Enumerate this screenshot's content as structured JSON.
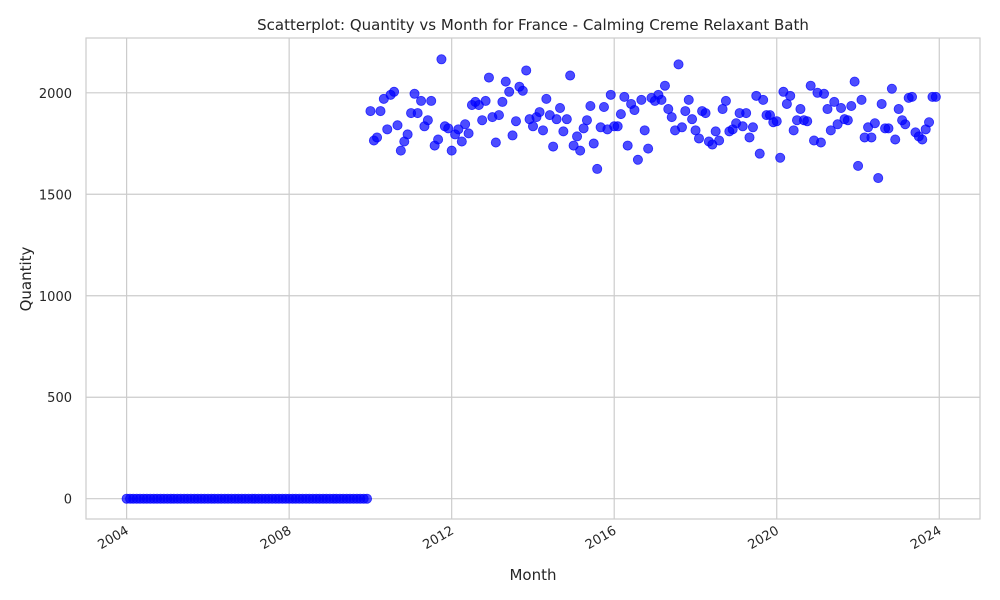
{
  "chart_data": {
    "type": "scatter",
    "title": "Scatterplot: Quantity vs Month for France - Calming Creme Relaxant Bath",
    "xlabel": "Month",
    "ylabel": "Quantity",
    "xlim": [
      "2003-01-01",
      "2025-01-01"
    ],
    "ylim": [
      -100,
      2270
    ],
    "x_ticks": [
      {
        "value": "2004-01-01",
        "label": "2004"
      },
      {
        "value": "2008-01-01",
        "label": "2008"
      },
      {
        "value": "2012-01-01",
        "label": "2012"
      },
      {
        "value": "2016-01-01",
        "label": "2016"
      },
      {
        "value": "2020-01-01",
        "label": "2020"
      },
      {
        "value": "2024-01-01",
        "label": "2024"
      }
    ],
    "y_ticks": [
      {
        "value": 0,
        "label": "0"
      },
      {
        "value": 500,
        "label": "500"
      },
      {
        "value": 1000,
        "label": "1000"
      },
      {
        "value": 1500,
        "label": "1500"
      },
      {
        "value": 2000,
        "label": "2000"
      }
    ],
    "grid": true,
    "marker_color": "#0000ff",
    "series": [
      {
        "x": [
          "2004-01",
          "2004-02",
          "2004-03",
          "2004-04",
          "2004-05",
          "2004-06",
          "2004-07",
          "2004-08",
          "2004-09",
          "2004-10",
          "2004-11",
          "2004-12",
          "2005-01",
          "2005-02",
          "2005-03",
          "2005-04",
          "2005-05",
          "2005-06",
          "2005-07",
          "2005-08",
          "2005-09",
          "2005-10",
          "2005-11",
          "2005-12",
          "2006-01",
          "2006-02",
          "2006-03",
          "2006-04",
          "2006-05",
          "2006-06",
          "2006-07",
          "2006-08",
          "2006-09",
          "2006-10",
          "2006-11",
          "2006-12",
          "2007-01",
          "2007-02",
          "2007-03",
          "2007-04",
          "2007-05",
          "2007-06",
          "2007-07",
          "2007-08",
          "2007-09",
          "2007-10",
          "2007-11",
          "2007-12",
          "2008-01",
          "2008-02",
          "2008-03",
          "2008-04",
          "2008-05",
          "2008-06",
          "2008-07",
          "2008-08",
          "2008-09",
          "2008-10",
          "2008-11",
          "2008-12",
          "2009-01",
          "2009-02",
          "2009-03",
          "2009-04",
          "2009-05",
          "2009-06",
          "2009-07",
          "2009-08",
          "2009-09",
          "2009-10",
          "2009-11",
          "2009-12",
          "2010-01",
          "2010-02",
          "2010-03",
          "2010-04",
          "2010-05",
          "2010-06",
          "2010-07",
          "2010-08",
          "2010-09",
          "2010-10",
          "2010-11",
          "2010-12",
          "2011-01",
          "2011-02",
          "2011-03",
          "2011-04",
          "2011-05",
          "2011-06",
          "2011-07",
          "2011-08",
          "2011-09",
          "2011-10",
          "2011-11",
          "2011-12",
          "2012-01",
          "2012-02",
          "2012-03",
          "2012-04",
          "2012-05",
          "2012-06",
          "2012-07",
          "2012-08",
          "2012-09",
          "2012-10",
          "2012-11",
          "2012-12",
          "2013-01",
          "2013-02",
          "2013-03",
          "2013-04",
          "2013-05",
          "2013-06",
          "2013-07",
          "2013-08",
          "2013-09",
          "2013-10",
          "2013-11",
          "2013-12",
          "2014-01",
          "2014-02",
          "2014-03",
          "2014-04",
          "2014-05",
          "2014-06",
          "2014-07",
          "2014-08",
          "2014-09",
          "2014-10",
          "2014-11",
          "2014-12",
          "2015-01",
          "2015-02",
          "2015-03",
          "2015-04",
          "2015-05",
          "2015-06",
          "2015-07",
          "2015-08",
          "2015-09",
          "2015-10",
          "2015-11",
          "2015-12",
          "2016-01",
          "2016-02",
          "2016-03",
          "2016-04",
          "2016-05",
          "2016-06",
          "2016-07",
          "2016-08",
          "2016-09",
          "2016-10",
          "2016-11",
          "2016-12",
          "2017-01",
          "2017-02",
          "2017-03",
          "2017-04",
          "2017-05",
          "2017-06",
          "2017-07",
          "2017-08",
          "2017-09",
          "2017-10",
          "2017-11",
          "2017-12",
          "2018-01",
          "2018-02",
          "2018-03",
          "2018-04",
          "2018-05",
          "2018-06",
          "2018-07",
          "2018-08",
          "2018-09",
          "2018-10",
          "2018-11",
          "2018-12",
          "2019-01",
          "2019-02",
          "2019-03",
          "2019-04",
          "2019-05",
          "2019-06",
          "2019-07",
          "2019-08",
          "2019-09",
          "2019-10",
          "2019-11",
          "2019-12",
          "2020-01",
          "2020-02",
          "2020-03",
          "2020-04",
          "2020-05",
          "2020-06",
          "2020-07",
          "2020-08",
          "2020-09",
          "2020-10",
          "2020-11",
          "2020-12",
          "2021-01",
          "2021-02",
          "2021-03",
          "2021-04",
          "2021-05",
          "2021-06",
          "2021-07",
          "2021-08",
          "2021-09",
          "2021-10",
          "2021-11",
          "2021-12",
          "2022-01",
          "2022-02",
          "2022-03",
          "2022-04",
          "2022-05",
          "2022-06",
          "2022-07",
          "2022-08",
          "2022-09",
          "2022-10",
          "2022-11",
          "2022-12",
          "2023-01",
          "2023-02",
          "2023-03",
          "2023-04",
          "2023-05",
          "2023-06",
          "2023-07",
          "2023-08",
          "2023-09",
          "2023-10",
          "2023-11",
          "2023-12"
        ],
        "y": [
          0,
          0,
          0,
          0,
          0,
          0,
          0,
          0,
          0,
          0,
          0,
          0,
          0,
          0,
          0,
          0,
          0,
          0,
          0,
          0,
          0,
          0,
          0,
          0,
          0,
          0,
          0,
          0,
          0,
          0,
          0,
          0,
          0,
          0,
          0,
          0,
          0,
          0,
          0,
          0,
          0,
          0,
          0,
          0,
          0,
          0,
          0,
          0,
          0,
          0,
          0,
          0,
          0,
          0,
          0,
          0,
          0,
          0,
          0,
          0,
          0,
          0,
          0,
          0,
          0,
          0,
          0,
          0,
          0,
          0,
          0,
          0,
          1910,
          1765,
          1780,
          1910,
          1970,
          1820,
          1990,
          2005,
          1840,
          1715,
          1760,
          1795,
          1900,
          1995,
          1900,
          1960,
          1835,
          1865,
          1960,
          1740,
          1770,
          2165,
          1835,
          1825,
          1715,
          1795,
          1820,
          1760,
          1845,
          1800,
          1940,
          1955,
          1940,
          1865,
          1960,
          2075,
          1880,
          1755,
          1890,
          1955,
          2055,
          2005,
          1790,
          1860,
          2030,
          2010,
          2110,
          1870,
          1835,
          1880,
          1905,
          1815,
          1970,
          1890,
          1735,
          1870,
          1925,
          1810,
          1870,
          2085,
          1740,
          1785,
          1715,
          1825,
          1865,
          1935,
          1750,
          1625,
          1830,
          1930,
          1820,
          1990,
          1835,
          1835,
          1895,
          1980,
          1740,
          1945,
          1915,
          1670,
          1965,
          1815,
          1725,
          1975,
          1960,
          1990,
          1965,
          2035,
          1920,
          1880,
          1815,
          2140,
          1830,
          1910,
          1965,
          1870,
          1815,
          1775,
          1910,
          1900,
          1760,
          1745,
          1810,
          1765,
          1920,
          1960,
          1810,
          1820,
          1850,
          1900,
          1835,
          1900,
          1780,
          1830,
          1985,
          1700,
          1965,
          1890,
          1890,
          1855,
          1860,
          1680,
          2005,
          1945,
          1985,
          1815,
          1865,
          1920,
          1865,
          1860,
          2035,
          1765,
          2000,
          1755,
          1995,
          1920,
          1815,
          1955,
          1845,
          1925,
          1870,
          1865,
          1935,
          2055,
          1640,
          1965,
          1780,
          1830,
          1780,
          1850,
          1580,
          1945,
          1825,
          1825,
          2020,
          1770,
          1920,
          1865,
          1845,
          1975,
          1980,
          1805,
          1785,
          1770,
          1820,
          1855,
          1980,
          1980
        ]
      }
    ]
  }
}
